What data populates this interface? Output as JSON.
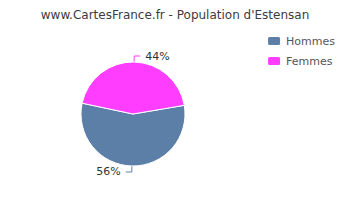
{
  "chart_data": {
    "type": "pie",
    "title": "www.CartesFrance.fr - Population d'Estensan",
    "categories": [
      "Hommes",
      "Femmes"
    ],
    "values": [
      56,
      44
    ],
    "value_labels": [
      "56%",
      "44%"
    ],
    "data_labels": true,
    "colors": [
      "#5b7fa6",
      "#ff3dff"
    ],
    "legend": "upper right"
  }
}
